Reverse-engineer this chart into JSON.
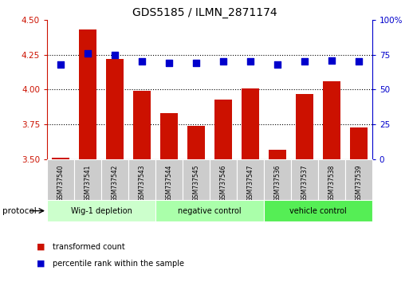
{
  "title": "GDS5185 / ILMN_2871174",
  "categories": [
    "GSM737540",
    "GSM737541",
    "GSM737542",
    "GSM737543",
    "GSM737544",
    "GSM737545",
    "GSM737546",
    "GSM737547",
    "GSM737536",
    "GSM737537",
    "GSM737538",
    "GSM737539"
  ],
  "red_values": [
    3.51,
    4.43,
    4.22,
    3.99,
    3.83,
    3.74,
    3.93,
    4.01,
    3.57,
    3.97,
    4.06,
    3.73
  ],
  "blue_values": [
    68,
    76,
    75,
    70,
    69,
    69,
    70,
    70,
    68,
    70,
    71,
    70
  ],
  "ylim_left": [
    3.5,
    4.5
  ],
  "ylim_right": [
    0,
    100
  ],
  "yticks_left": [
    3.5,
    3.75,
    4.0,
    4.25,
    4.5
  ],
  "yticks_right": [
    0,
    25,
    50,
    75,
    100
  ],
  "ytick_labels_right": [
    "0",
    "25",
    "50",
    "75",
    "100%"
  ],
  "grid_values": [
    3.75,
    4.0,
    4.25
  ],
  "groups": [
    {
      "label": "Wig-1 depletion",
      "start": 0,
      "end": 3,
      "color": "#ccffcc"
    },
    {
      "label": "negative control",
      "start": 4,
      "end": 7,
      "color": "#aaffaa"
    },
    {
      "label": "vehicle control",
      "start": 8,
      "end": 11,
      "color": "#55ee55"
    }
  ],
  "bar_color": "#cc1100",
  "dot_color": "#0000cc",
  "bar_width": 0.65,
  "dot_size": 28,
  "protocol_label": "protocol",
  "legend_items": [
    {
      "color": "#cc1100",
      "label": "transformed count"
    },
    {
      "color": "#0000cc",
      "label": "percentile rank within the sample"
    }
  ],
  "left_axis_color": "#cc1100",
  "right_axis_color": "#0000cc",
  "bar_bottom": 3.5,
  "background_color": "#ffffff",
  "sample_label_bg": "#cccccc",
  "title_fontsize": 10
}
